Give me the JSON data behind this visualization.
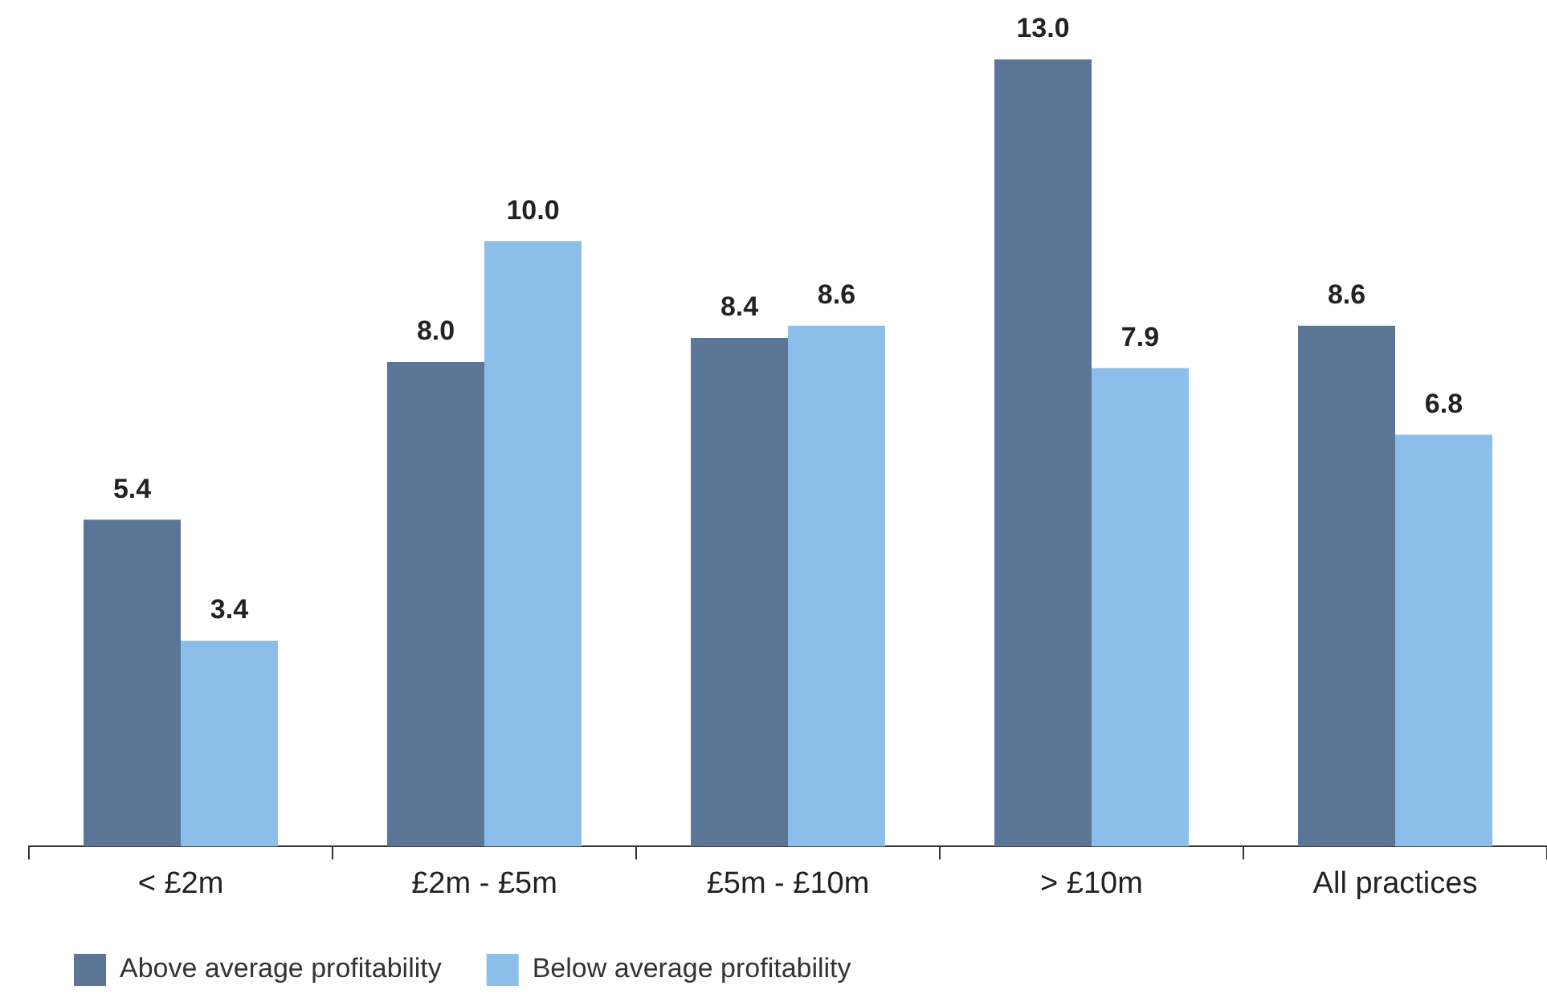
{
  "chart_data": {
    "type": "bar",
    "categories": [
      "< £2m",
      "£2m - £5m",
      "£5m - £10m",
      "> £10m",
      "All practices"
    ],
    "series": [
      {
        "name": "Above average profitability",
        "color": "#5a7595",
        "values": [
          5.4,
          8.0,
          8.4,
          13.0,
          8.6
        ],
        "value_labels": [
          "5.4",
          "8.0",
          "8.4",
          "13.0",
          "8.6"
        ]
      },
      {
        "name": "Below average profitability",
        "color": "#8bbfe9",
        "values": [
          3.4,
          10.0,
          8.6,
          7.9,
          6.8
        ],
        "value_labels": [
          "3.4",
          "10.0",
          "8.6",
          "7.9",
          "6.8"
        ]
      }
    ],
    "ylim": [
      0,
      13
    ],
    "tick_labels": "x",
    "legend": "bottom left",
    "grid": false
  }
}
